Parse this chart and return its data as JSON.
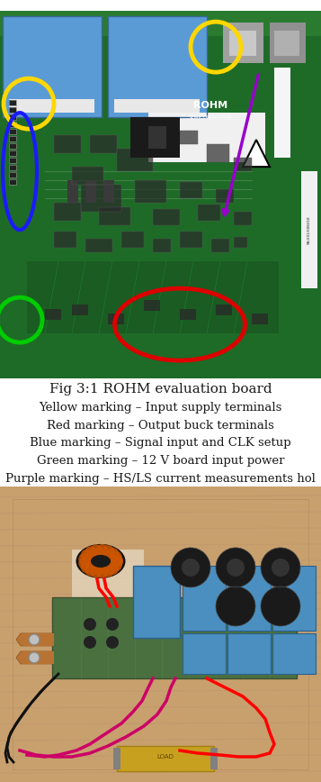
{
  "title_line1": "Fig 3:1 ROHM evaluation board",
  "title_line2": "Yellow marking – Input supply terminals",
  "title_line3": "Red marking – Output buck terminals",
  "title_line4": "Blue marking – Signal input and CLK setup",
  "title_line5": "Green marking – 12 V board input power",
  "title_line6": "Purple marking – HS/LS current measurements hol",
  "fig_width": 3.57,
  "fig_height": 8.68,
  "dpi": 100,
  "bg_color": "#ffffff",
  "text_color": "#1a1a1a",
  "caption_fontsize": 9.5,
  "caption_line1_fontsize": 11.0,
  "pcb_green": "#1e6b27",
  "pcb_green2": "#1a5c22",
  "relay_blue": "#5b9bd5",
  "wood_tan": "#c8a06e",
  "wood_tan2": "#b8906a",
  "cap_blue": "#4a8fc0",
  "cap_black": "#1a1a1a",
  "pcb_green_bottom": "#4a7040",
  "copper_color": "#b87333",
  "gold_color": "#c8a020"
}
